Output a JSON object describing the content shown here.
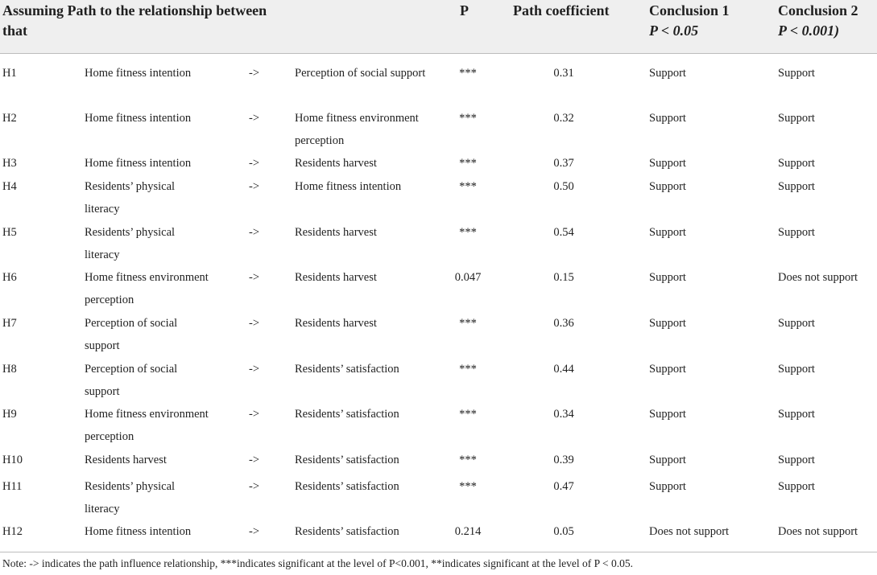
{
  "header": {
    "col_assume_line1": "Assuming Path to the relationship between",
    "col_assume_line2": "that",
    "col_p": "P",
    "col_coef": "Path coefficient",
    "col_con1_title": "Conclusion 1",
    "col_con1_sub": "P < 0.05",
    "col_con2_title": "Conclusion 2",
    "col_con2_sub": "P < 0.001)"
  },
  "rows": [
    {
      "id": "H1",
      "from": "Home fitness intention",
      "arrow": "->",
      "to": "Perception of social support",
      "p": "***",
      "coef": "0.31",
      "con1": "Support",
      "con2": "Support"
    },
    {
      "id": "H2",
      "from": "Home fitness intention",
      "arrow": "->",
      "to": "Home fitness environment perception",
      "p": "***",
      "coef": "0.32",
      "con1": "Support",
      "con2": "Support"
    },
    {
      "id": "H3",
      "from": "Home fitness intention",
      "arrow": "->",
      "to": "Residents harvest",
      "p": "***",
      "coef": "0.37",
      "con1": "Support",
      "con2": "Support"
    },
    {
      "id": "H4",
      "from": "Residents’ physical literacy",
      "arrow": "->",
      "to": "Home fitness intention",
      "p": "***",
      "coef": "0.50",
      "con1": "Support",
      "con2": "Support"
    },
    {
      "id": "H5",
      "from": "Residents’ physical literacy",
      "arrow": "->",
      "to": "Residents harvest",
      "p": "***",
      "coef": "0.54",
      "con1": "Support",
      "con2": "Support"
    },
    {
      "id": "H6",
      "from": "Home fitness environment perception",
      "arrow": "->",
      "to": "Residents harvest",
      "p": "0.047",
      "coef": "0.15",
      "con1": "Support",
      "con2": "Does not support"
    },
    {
      "id": "H7",
      "from": "Perception of social support",
      "arrow": "->",
      "to": "Residents harvest",
      "p": "***",
      "coef": "0.36",
      "con1": "Support",
      "con2": "Support"
    },
    {
      "id": "H8",
      "from": "Perception of social support",
      "arrow": "->",
      "to": "Residents’ satisfaction",
      "p": "***",
      "coef": "0.44",
      "con1": "Support",
      "con2": "Support"
    },
    {
      "id": "H9",
      "from": "Home fitness environment perception",
      "arrow": "->",
      "to": "Residents’ satisfaction",
      "p": "***",
      "coef": "0.34",
      "con1": "Support",
      "con2": "Support"
    },
    {
      "id": "H10",
      "from": "Residents harvest",
      "arrow": "->",
      "to": "Residents’ satisfaction",
      "p": "***",
      "coef": "0.39",
      "con1": "Support",
      "con2": "Support"
    },
    {
      "id": "H11",
      "from": "Residents’ physical literacy",
      "arrow": "->",
      "to": "Residents’ satisfaction",
      "p": "***",
      "coef": "0.47",
      "con1": "Support",
      "con2": "Support"
    },
    {
      "id": "H12",
      "from": "Home fitness intention",
      "arrow": "->",
      "to": "Residents’ satisfaction",
      "p": "0.214",
      "coef": "0.05",
      "con1": "Does not support",
      "con2": "Does not support"
    }
  ],
  "note": "Note: -> indicates the path influence relationship, ***indicates significant at the level of P<0.001, **indicates significant at the level of P < 0.05."
}
